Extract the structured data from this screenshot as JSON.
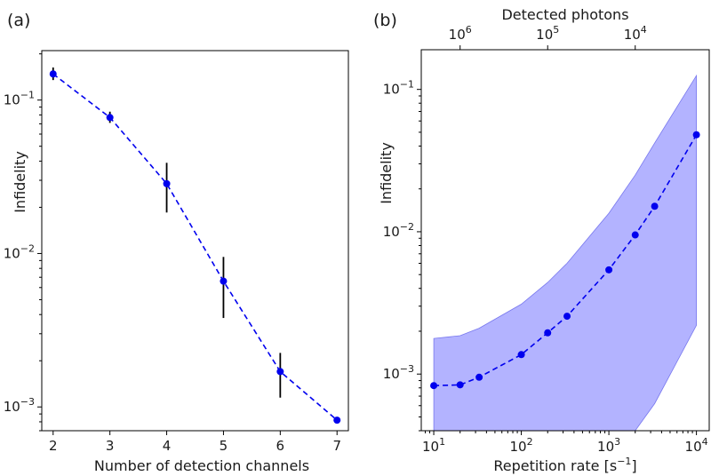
{
  "chart_data": [
    {
      "type": "line",
      "panel_label": "(a)",
      "xlabel": "Number of detection channels",
      "ylabel": "Infidelity",
      "x_scale": "linear",
      "y_scale": "log",
      "xlim": [
        1.8,
        7.2
      ],
      "ylim": [
        0.0007,
        0.21
      ],
      "x_ticks": [
        2,
        3,
        4,
        5,
        6,
        7
      ],
      "y_ticks": [
        {
          "value": 0.1,
          "base": "10",
          "exp": "−1"
        },
        {
          "value": 0.01,
          "base": "10",
          "exp": "−2"
        },
        {
          "value": 0.001,
          "base": "10",
          "exp": "−3"
        }
      ],
      "series": [
        {
          "color": "#0000ee",
          "linestyle": "dashed",
          "marker": "circle",
          "points": [
            {
              "x": 2,
              "y": 0.148,
              "ylow": 0.135,
              "yhigh": 0.163
            },
            {
              "x": 3,
              "y": 0.077,
              "ylow": 0.071,
              "yhigh": 0.084
            },
            {
              "x": 4,
              "y": 0.0285,
              "ylow": 0.0185,
              "yhigh": 0.039
            },
            {
              "x": 5,
              "y": 0.0066,
              "ylow": 0.0038,
              "yhigh": 0.0095
            },
            {
              "x": 6,
              "y": 0.0017,
              "ylow": 0.00115,
              "yhigh": 0.00225
            },
            {
              "x": 7,
              "y": 0.00082,
              "ylow": 0.00082,
              "yhigh": 0.00082
            }
          ]
        }
      ],
      "grid": false,
      "legend": false
    },
    {
      "type": "line",
      "panel_label": "(b)",
      "xlabel": "Repetition rate [s",
      "xlabel_sup": "−1",
      "xlabel_end": "]",
      "ylabel": "Infidelity",
      "top_axis_label": "Detected photons",
      "x_scale": "log",
      "y_scale": "log",
      "xlim": [
        7.2,
        14000
      ],
      "ylim": [
        0.0004,
        0.19
      ],
      "x_ticks": [
        {
          "value": 10,
          "base": "10",
          "exp": "1"
        },
        {
          "value": 100,
          "base": "10",
          "exp": "2"
        },
        {
          "value": 1000,
          "base": "10",
          "exp": "3"
        },
        {
          "value": 10000,
          "base": "10",
          "exp": "4"
        }
      ],
      "top_ticks": [
        {
          "at_x": 20,
          "base": "10",
          "exp": "6"
        },
        {
          "at_x": 200,
          "base": "10",
          "exp": "5"
        },
        {
          "at_x": 2000,
          "base": "10",
          "exp": "4"
        }
      ],
      "y_ticks": [
        {
          "value": 0.1,
          "base": "10",
          "exp": "−1"
        },
        {
          "value": 0.01,
          "base": "10",
          "exp": "−2"
        },
        {
          "value": 0.001,
          "base": "10",
          "exp": "−3"
        }
      ],
      "series": [
        {
          "color": "#0000ee",
          "linestyle": "dashed",
          "marker": "circle",
          "x": [
            10,
            20,
            33,
            100,
            200,
            333,
            1000,
            2000,
            3333,
            10000
          ],
          "y": [
            0.00083,
            0.00084,
            0.00095,
            0.00137,
            0.00195,
            0.00255,
            0.0054,
            0.0095,
            0.0151,
            0.048
          ]
        }
      ],
      "band": {
        "color": "#9999ff",
        "x": [
          10,
          20,
          33,
          100,
          200,
          333,
          1000,
          2000,
          3333,
          10000
        ],
        "upper": [
          0.00178,
          0.00186,
          0.0021,
          0.0031,
          0.0044,
          0.006,
          0.0135,
          0.025,
          0.042,
          0.125
        ],
        "lower": [
          0.0004,
          0.0004,
          0.0004,
          0.0004,
          0.0004,
          0.0004,
          0.0004,
          0.0004,
          0.00062,
          0.0022
        ]
      },
      "grid": false,
      "legend": false
    }
  ]
}
